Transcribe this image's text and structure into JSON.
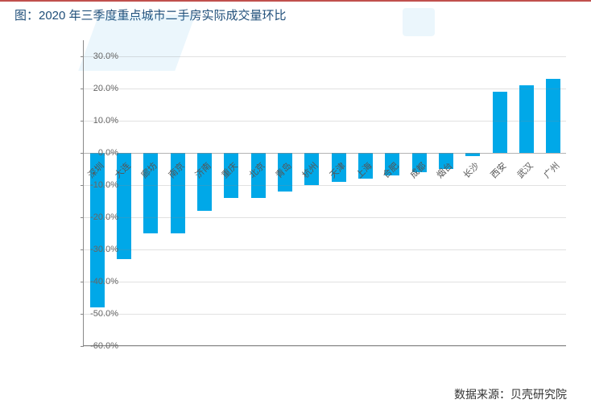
{
  "title": "图：2020 年三季度重点城市二手房实际成交量环比",
  "source_label": "数据来源：",
  "source_value": "贝壳研究院",
  "chart": {
    "type": "bar",
    "background_color": "#ffffff",
    "bar_color": "#00a8e8",
    "axis_color": "#888888",
    "grid_color": "#888888",
    "label_color": "#666666",
    "xlabel_color": "#555555",
    "label_fontsize": 11,
    "title_fontsize": 15,
    "title_color": "#1f4e79",
    "accent_rule_color": "#c0504d",
    "ylim": [
      -60,
      35
    ],
    "ytick_step": 10,
    "yticks": [
      -60,
      -50,
      -40,
      -30,
      -20,
      -10,
      0,
      10,
      20,
      30
    ],
    "ytick_format_suffix": "%",
    "bar_width_ratio": 0.55,
    "categories": [
      "深圳",
      "大连",
      "廊坊",
      "南京",
      "济南",
      "重庆",
      "北京",
      "青岛",
      "杭州",
      "天津",
      "上海",
      "合肥",
      "成都",
      "烟台",
      "长沙",
      "西安",
      "武汉",
      "广州"
    ],
    "values": [
      -48,
      -33,
      -25,
      -25,
      -18,
      -14,
      -14,
      -12,
      -10,
      -9,
      -8,
      -7,
      -6,
      -5,
      -1,
      19,
      21,
      23
    ]
  }
}
